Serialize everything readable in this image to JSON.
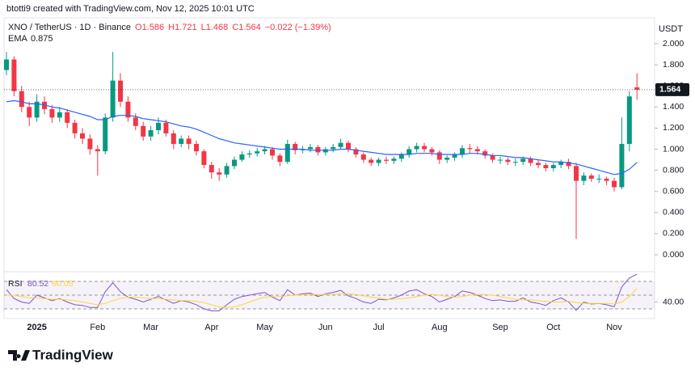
{
  "header": "btotti9 created with TradingView.com, Nov 12, 2025 10:01 UTC",
  "brand": "TradingView",
  "chart_data": [
    {
      "type": "candlestick",
      "axis_label": "USDT",
      "legend": {
        "symbol": "XNO / TetherUS · 1D · Binance",
        "open": "O1.586",
        "high": "H1.721",
        "low": "L1.468",
        "close": "C1.564",
        "change": "−0.022 (−1.39%)"
      },
      "up_color": "#089981",
      "down_color": "#f23645",
      "categories": [
        null,
        null,
        null,
        null,
        "2025",
        null,
        null,
        null,
        null,
        null,
        null,
        null,
        "Feb",
        null,
        null,
        null,
        null,
        null,
        null,
        "Mar",
        null,
        null,
        null,
        null,
        null,
        null,
        null,
        "Apr",
        null,
        null,
        null,
        null,
        null,
        null,
        "May",
        null,
        null,
        null,
        null,
        null,
        null,
        null,
        "Jun",
        null,
        null,
        null,
        null,
        null,
        null,
        "Jul",
        null,
        null,
        null,
        null,
        null,
        null,
        null,
        "Aug",
        null,
        null,
        null,
        null,
        null,
        null,
        null,
        "Sep",
        null,
        null,
        null,
        null,
        null,
        null,
        "Oct",
        null,
        null,
        null,
        null,
        null,
        null,
        null,
        "Nov",
        null,
        null,
        null
      ],
      "open": [
        1.75,
        1.85,
        1.55,
        1.4,
        1.3,
        1.45,
        1.38,
        1.3,
        1.35,
        1.25,
        1.15,
        1.1,
        1.0,
        0.98,
        1.3,
        1.65,
        1.45,
        1.3,
        1.22,
        1.12,
        1.18,
        1.25,
        1.15,
        1.05,
        1.1,
        1.05,
        0.98,
        0.85,
        0.78,
        0.76,
        0.84,
        0.9,
        0.95,
        0.96,
        0.98,
        1.0,
        0.94,
        0.88,
        1.05,
        0.99,
        1.0,
        1.02,
        0.97,
        1.0,
        1.02,
        1.06,
        1.0,
        0.95,
        0.9,
        0.87,
        0.9,
        0.89,
        0.91,
        0.95,
        1.0,
        1.03,
        1.0,
        0.97,
        0.9,
        0.92,
        0.95,
        1.01,
        1.0,
        0.98,
        0.94,
        0.9,
        0.9,
        0.88,
        0.88,
        0.91,
        0.87,
        0.85,
        0.82,
        0.85,
        0.88,
        0.84,
        0.7,
        0.75,
        0.72,
        0.72,
        0.7,
        0.64,
        1.05,
        1.586
      ],
      "high": [
        1.92,
        1.88,
        1.6,
        1.45,
        1.52,
        1.5,
        1.42,
        1.4,
        1.38,
        1.28,
        1.2,
        1.14,
        1.04,
        1.34,
        1.92,
        1.72,
        1.5,
        1.34,
        1.26,
        1.22,
        1.3,
        1.28,
        1.18,
        1.13,
        1.13,
        1.08,
        1.0,
        0.88,
        0.82,
        0.87,
        0.93,
        0.98,
        0.99,
        1.01,
        1.03,
        1.02,
        0.96,
        1.09,
        1.07,
        1.03,
        1.05,
        1.04,
        1.02,
        1.05,
        1.1,
        1.08,
        1.02,
        0.97,
        0.92,
        0.92,
        0.93,
        0.93,
        0.97,
        1.03,
        1.06,
        1.06,
        1.02,
        0.99,
        0.94,
        0.97,
        1.04,
        1.05,
        1.03,
        1.0,
        0.96,
        0.93,
        0.92,
        0.91,
        0.93,
        0.93,
        0.9,
        0.87,
        0.87,
        0.9,
        0.91,
        0.87,
        0.78,
        0.77,
        0.76,
        0.74,
        0.73,
        1.3,
        1.55,
        1.721
      ],
      "low": [
        1.7,
        1.5,
        1.35,
        1.22,
        1.26,
        1.33,
        1.25,
        1.26,
        1.2,
        1.1,
        1.05,
        0.95,
        0.75,
        0.95,
        1.26,
        1.4,
        1.26,
        1.18,
        1.08,
        1.08,
        1.14,
        1.12,
        1.0,
        1.02,
        1.0,
        0.94,
        0.82,
        0.72,
        0.7,
        0.73,
        0.81,
        0.88,
        0.92,
        0.93,
        0.95,
        0.9,
        0.84,
        0.86,
        0.95,
        0.96,
        0.97,
        0.94,
        0.94,
        0.97,
        1.0,
        0.97,
        0.92,
        0.87,
        0.84,
        0.84,
        0.86,
        0.86,
        0.88,
        0.92,
        0.97,
        0.97,
        0.94,
        0.86,
        0.87,
        0.89,
        0.92,
        0.96,
        0.95,
        0.91,
        0.87,
        0.86,
        0.85,
        0.84,
        0.85,
        0.84,
        0.82,
        0.79,
        0.79,
        0.82,
        0.81,
        0.15,
        0.66,
        0.69,
        0.68,
        0.66,
        0.6,
        0.62,
        0.98,
        1.468
      ],
      "close": [
        1.85,
        1.55,
        1.4,
        1.3,
        1.45,
        1.38,
        1.3,
        1.35,
        1.25,
        1.15,
        1.1,
        1.0,
        0.98,
        1.3,
        1.65,
        1.45,
        1.3,
        1.22,
        1.12,
        1.18,
        1.25,
        1.15,
        1.05,
        1.1,
        1.05,
        0.98,
        0.85,
        0.78,
        0.76,
        0.84,
        0.9,
        0.95,
        0.96,
        0.98,
        1.0,
        0.94,
        0.88,
        1.05,
        0.99,
        1.0,
        1.02,
        0.97,
        1.0,
        1.02,
        1.06,
        1.0,
        0.95,
        0.9,
        0.87,
        0.9,
        0.89,
        0.91,
        0.95,
        1.0,
        1.03,
        1.0,
        0.97,
        0.9,
        0.92,
        0.95,
        1.01,
        1.0,
        0.98,
        0.94,
        0.9,
        0.9,
        0.88,
        0.88,
        0.91,
        0.87,
        0.85,
        0.82,
        0.85,
        0.88,
        0.84,
        0.7,
        0.75,
        0.72,
        0.72,
        0.7,
        0.64,
        1.05,
        1.5,
        1.564
      ],
      "series": [
        {
          "name": "EMA",
          "color": "#2962ff",
          "last_value": 0.875,
          "values": [
            1.45,
            1.46,
            1.45,
            1.43,
            1.43,
            1.42,
            1.4,
            1.39,
            1.37,
            1.35,
            1.33,
            1.31,
            1.28,
            1.28,
            1.31,
            1.32,
            1.32,
            1.31,
            1.29,
            1.28,
            1.27,
            1.26,
            1.24,
            1.22,
            1.21,
            1.19,
            1.16,
            1.13,
            1.1,
            1.08,
            1.06,
            1.05,
            1.04,
            1.03,
            1.02,
            1.01,
            1.0,
            1.0,
            1.0,
            1.0,
            0.99,
            0.99,
            0.99,
            0.99,
            1.0,
            1.0,
            0.99,
            0.98,
            0.97,
            0.96,
            0.95,
            0.95,
            0.95,
            0.95,
            0.96,
            0.96,
            0.96,
            0.95,
            0.95,
            0.95,
            0.95,
            0.96,
            0.96,
            0.95,
            0.94,
            0.94,
            0.93,
            0.92,
            0.92,
            0.91,
            0.9,
            0.89,
            0.88,
            0.88,
            0.87,
            0.86,
            0.84,
            0.82,
            0.8,
            0.78,
            0.76,
            0.77,
            0.81,
            0.875
          ]
        }
      ],
      "last_price": {
        "value": 1.564,
        "label": "1.564"
      },
      "ylim": [
        -0.153,
        2.245
      ],
      "yticks": [
        {
          "value": 0,
          "label": "0.000"
        },
        {
          "value": 0.2,
          "label": "0.200"
        },
        {
          "value": 0.4,
          "label": "0.400"
        },
        {
          "value": 0.6,
          "label": "0.600"
        },
        {
          "value": 0.8,
          "label": "0.800"
        },
        {
          "value": 1,
          "label": "1.000"
        },
        {
          "value": 1.2,
          "label": "1.200"
        },
        {
          "value": 1.4,
          "label": "1.400"
        },
        {
          "value": 1.6,
          "label": "1.600"
        },
        {
          "value": 1.8,
          "label": "1.800"
        },
        {
          "value": 2,
          "label": "2.000"
        }
      ],
      "grid": false
    },
    {
      "type": "line",
      "series": [
        {
          "name": "RSI",
          "color": "#7e57c2",
          "last_value": 80.52,
          "values": [
            58,
            45,
            40,
            38,
            50,
            46,
            42,
            45,
            40,
            36,
            35,
            32,
            32,
            55,
            68,
            55,
            47,
            44,
            40,
            44,
            48,
            43,
            38,
            42,
            40,
            36,
            30,
            27,
            27,
            36,
            44,
            48,
            50,
            52,
            54,
            47,
            42,
            58,
            50,
            52,
            53,
            48,
            52,
            54,
            57,
            49,
            45,
            40,
            38,
            44,
            43,
            46,
            50,
            56,
            58,
            52,
            48,
            40,
            44,
            48,
            56,
            54,
            50,
            45,
            42,
            43,
            41,
            41,
            46,
            40,
            38,
            35,
            42,
            46,
            40,
            28,
            40,
            37,
            38,
            36,
            33,
            62,
            75,
            80.52
          ]
        },
        {
          "color": "#fdd835",
          "last_value": 60.05,
          "values": [
            50,
            50,
            48,
            46,
            46,
            45,
            44,
            44,
            43,
            42,
            40,
            38,
            36,
            38,
            42,
            45,
            47,
            47,
            46,
            45,
            45,
            44,
            43,
            42,
            42,
            41,
            39,
            36,
            33,
            32,
            33,
            36,
            40,
            44,
            47,
            48,
            48,
            49,
            50,
            51,
            51,
            51,
            51,
            51,
            52,
            52,
            51,
            49,
            47,
            46,
            44,
            44,
            45,
            46,
            48,
            50,
            51,
            50,
            48,
            47,
            48,
            50,
            51,
            51,
            50,
            48,
            46,
            44,
            43,
            43,
            42,
            41,
            40,
            40,
            41,
            39,
            38,
            38,
            38,
            38,
            37,
            40,
            48,
            60.05
          ]
        }
      ],
      "band_levels": [
        70,
        50,
        30
      ],
      "ylim": [
        18.2,
        81.8
      ],
      "yticks": [
        {
          "value": 40,
          "label": "40.00"
        }
      ]
    }
  ]
}
